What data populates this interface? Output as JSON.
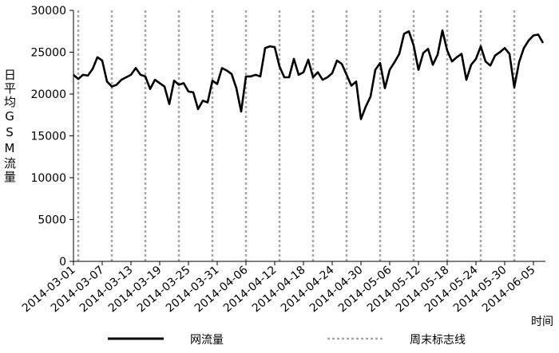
{
  "chart_data": {
    "type": "line",
    "y_label": "日平均GSM流量",
    "x_label": "时间",
    "x": [
      "2014-03-01",
      "2014-03-02",
      "2014-03-03",
      "2014-03-04",
      "2014-03-05",
      "2014-03-06",
      "2014-03-07",
      "2014-03-08",
      "2014-03-09",
      "2014-03-10",
      "2014-03-11",
      "2014-03-12",
      "2014-03-13",
      "2014-03-14",
      "2014-03-15",
      "2014-03-16",
      "2014-03-17",
      "2014-03-18",
      "2014-03-19",
      "2014-03-20",
      "2014-03-21",
      "2014-03-22",
      "2014-03-23",
      "2014-03-24",
      "2014-03-25",
      "2014-03-26",
      "2014-03-27",
      "2014-03-28",
      "2014-03-29",
      "2014-03-30",
      "2014-03-31",
      "2014-04-01",
      "2014-04-02",
      "2014-04-03",
      "2014-04-04",
      "2014-04-05",
      "2014-04-06",
      "2014-04-07",
      "2014-04-08",
      "2014-04-09",
      "2014-04-10",
      "2014-04-11",
      "2014-04-12",
      "2014-04-13",
      "2014-04-14",
      "2014-04-15",
      "2014-04-16",
      "2014-04-17",
      "2014-04-18",
      "2014-04-19",
      "2014-04-20",
      "2014-04-21",
      "2014-04-22",
      "2014-04-23",
      "2014-04-24",
      "2014-04-25",
      "2014-04-26",
      "2014-04-27",
      "2014-04-28",
      "2014-04-29",
      "2014-04-30",
      "2014-05-01",
      "2014-05-02",
      "2014-05-03",
      "2014-05-04",
      "2014-05-05",
      "2014-05-06",
      "2014-05-07",
      "2014-05-08",
      "2014-05-09",
      "2014-05-10",
      "2014-05-11",
      "2014-05-12",
      "2014-05-13",
      "2014-05-14",
      "2014-05-15",
      "2014-05-16",
      "2014-05-17",
      "2014-05-18",
      "2014-05-19",
      "2014-05-20",
      "2014-05-21",
      "2014-05-22",
      "2014-05-23",
      "2014-05-24",
      "2014-05-25",
      "2014-05-26",
      "2014-05-27",
      "2014-05-28",
      "2014-05-29",
      "2014-05-30",
      "2014-05-31",
      "2014-06-01",
      "2014-06-02",
      "2014-06-03",
      "2014-06-04",
      "2014-06-05",
      "2014-06-06",
      "2014-06-07"
    ],
    "series": [
      {
        "name": "网流量",
        "color": "#000000",
        "values": [
          22300,
          21800,
          22300,
          22200,
          23000,
          24400,
          24000,
          21500,
          20900,
          21100,
          21700,
          22000,
          22300,
          23100,
          22300,
          22100,
          20600,
          21700,
          21300,
          20900,
          18800,
          21600,
          21100,
          21300,
          20300,
          20200,
          18200,
          19200,
          19000,
          21600,
          21200,
          23100,
          22800,
          22400,
          20700,
          17900,
          22100,
          22100,
          22300,
          22100,
          25500,
          25700,
          25600,
          23300,
          22000,
          22000,
          24200,
          22300,
          22600,
          24100,
          22000,
          22600,
          21700,
          22000,
          22500,
          24000,
          23600,
          22300,
          21000,
          21500,
          17000,
          18500,
          19700,
          22900,
          23700,
          20700,
          22900,
          23800,
          24800,
          27200,
          27500,
          25800,
          22900,
          24900,
          25400,
          23500,
          24700,
          27600,
          25200,
          23900,
          24400,
          24800,
          21700,
          23500,
          24200,
          25700,
          23900,
          23400,
          24600,
          25000,
          25500,
          24800,
          20800,
          23800,
          25500,
          26400,
          27000,
          27100,
          26100
        ]
      }
    ],
    "weekend_markers": {
      "name": "周末标志线",
      "color": "#a6a6a6",
      "x": [
        "2014-03-02",
        "2014-03-09",
        "2014-03-16",
        "2014-03-23",
        "2014-03-30",
        "2014-04-06",
        "2014-04-13",
        "2014-04-20",
        "2014-04-27",
        "2014-05-04",
        "2014-05-11",
        "2014-05-18",
        "2014-05-25",
        "2014-06-01"
      ]
    },
    "xlim": [
      "2014-03-01",
      "2014-06-07"
    ],
    "xticks": [
      "2014-03-01",
      "2014-03-07",
      "2014-03-13",
      "2014-03-19",
      "2014-03-25",
      "2014-03-31",
      "2014-04-06",
      "2014-04-12",
      "2014-04-18",
      "2014-04-24",
      "2014-04-30",
      "2014-05-06",
      "2014-05-12",
      "2014-05-18",
      "2014-05-24",
      "2014-05-30",
      "2014-06-05"
    ],
    "ylim": [
      0,
      30000
    ],
    "yticks": [
      0,
      5000,
      10000,
      15000,
      20000,
      25000,
      30000
    ]
  }
}
